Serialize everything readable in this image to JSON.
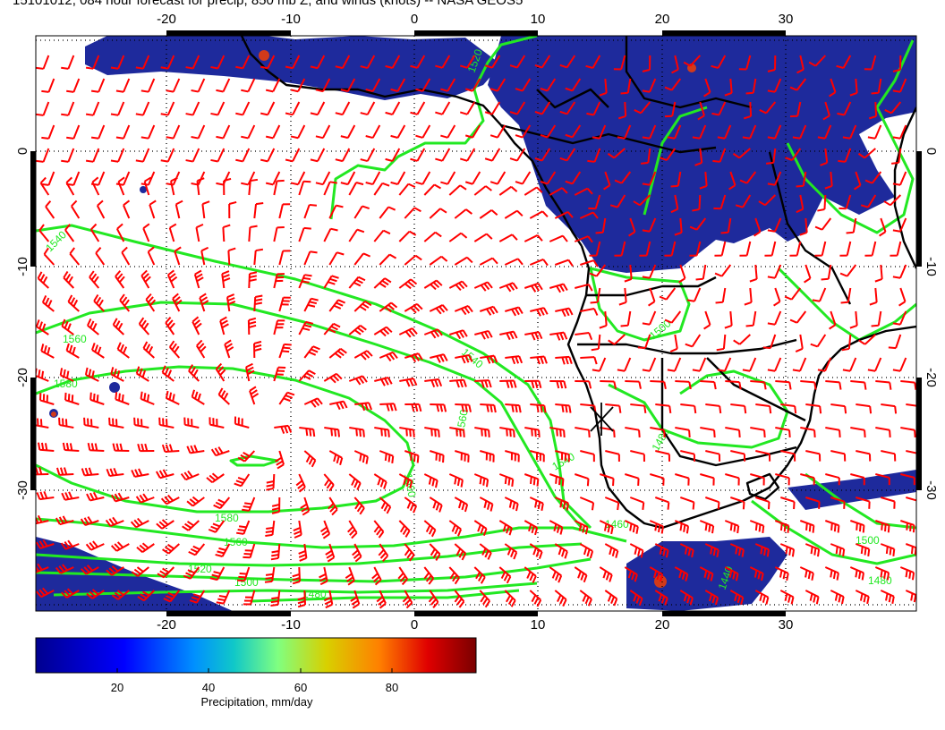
{
  "title": "15101012, 084 hour forecast for precip, 850 mb Z, and winds (knots) -- NASA GEOS5",
  "map": {
    "lon_range": [
      -30,
      40
    ],
    "lat_range": [
      -40,
      10
    ],
    "x_tick_labels": [
      "-20",
      "-10",
      "0",
      "10",
      "20",
      "30"
    ],
    "y_tick_labels": [
      "0",
      "-10",
      "-20",
      "-30"
    ],
    "dotted_grid": true,
    "marker_symbol": "X",
    "contour_labels": [
      "1520",
      "1540",
      "1560",
      "1580",
      "1500",
      "1480",
      "1460",
      "1440",
      "1560",
      "1580",
      "1540",
      "1520",
      "1560",
      "1500",
      "1480",
      "1480",
      "1500",
      "1540",
      "1560"
    ],
    "colors": {
      "contour": "#22e822",
      "wind_barbs": "#ff0000",
      "coastlines": "#000000",
      "precip_low": "#1e2a9c"
    }
  },
  "colorbar": {
    "label": "Precipitation, mm/day",
    "tick_labels": [
      "20",
      "40",
      "60",
      "80"
    ],
    "colors": [
      "#00008f",
      "#0000ff",
      "#0080ff",
      "#00c0c0",
      "#80ff80",
      "#d0d000",
      "#ff8000",
      "#ff0000",
      "#800000"
    ]
  }
}
